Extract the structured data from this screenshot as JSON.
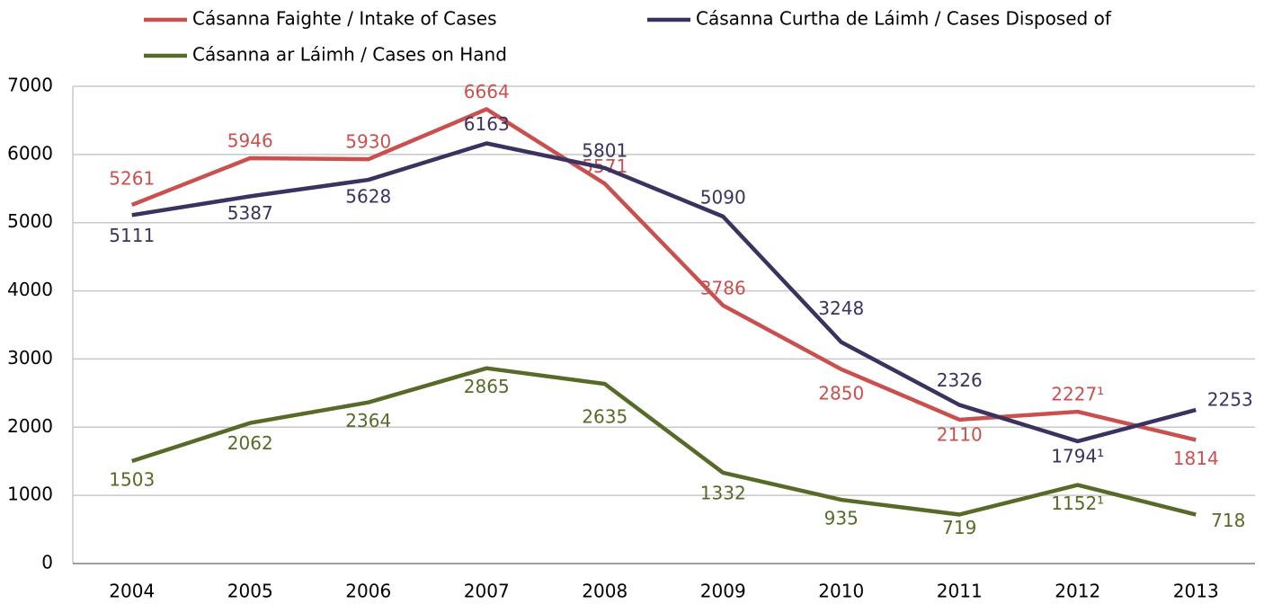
{
  "chart_data": {
    "type": "line",
    "categories": [
      "2004",
      "2005",
      "2006",
      "2007",
      "2008",
      "2009",
      "2010",
      "2011",
      "2012",
      "2013"
    ],
    "series": [
      {
        "name": "Cásanna Faighte / Intake of Cases",
        "color": "#c9504f",
        "values": [
          5261,
          5946,
          5930,
          6664,
          5571,
          3786,
          2850,
          2110,
          2227,
          1814
        ],
        "value_labels": [
          "5261",
          "5946",
          "5930",
          "6664",
          "5571",
          "3786",
          "2850",
          "2110",
          "2227¹",
          "1814"
        ]
      },
      {
        "name": "Cásanna Curtha de Láimh / Cases Disposed of",
        "color": "#3b3260",
        "values": [
          5111,
          5387,
          5628,
          6163,
          5801,
          5090,
          3248,
          2326,
          1794,
          2253
        ],
        "value_labels": [
          "5111",
          "5387",
          "5628",
          "6163",
          "5801",
          "5090",
          "3248",
          "2326",
          "1794¹",
          "2253"
        ]
      },
      {
        "name": "Cásanna ar Láimh / Cases on Hand",
        "color": "#566b27",
        "values": [
          1503,
          2062,
          2364,
          2865,
          2635,
          1332,
          935,
          719,
          1152,
          718
        ],
        "value_labels": [
          "1503",
          "2062",
          "2364",
          "2865",
          "2635",
          "1332",
          "935",
          "719",
          "1152¹",
          "718"
        ]
      }
    ],
    "ylim": [
      0,
      7000
    ],
    "yticks": [
      0,
      1000,
      2000,
      3000,
      4000,
      5000,
      6000,
      7000
    ],
    "grid": true
  }
}
